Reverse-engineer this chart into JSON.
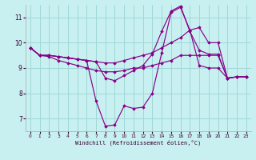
{
  "xlabel": "Windchill (Refroidissement éolien,°C)",
  "background_color": "#c8f0f0",
  "grid_color": "#a0d8d8",
  "line_color": "#880088",
  "xlim": [
    -0.5,
    23.5
  ],
  "ylim": [
    6.5,
    11.5
  ],
  "xticks": [
    0,
    1,
    2,
    3,
    4,
    5,
    6,
    7,
    8,
    9,
    10,
    11,
    12,
    13,
    14,
    15,
    16,
    17,
    18,
    19,
    20,
    21,
    22,
    23
  ],
  "yticks": [
    7,
    8,
    9,
    10,
    11
  ],
  "curves": [
    {
      "x": [
        0,
        1,
        2,
        3,
        4,
        5,
        6,
        7,
        8,
        9,
        10,
        11,
        12,
        13,
        14,
        15,
        16,
        17,
        18,
        19,
        20,
        21,
        22,
        23
      ],
      "y": [
        9.8,
        9.5,
        9.5,
        9.45,
        9.4,
        9.35,
        9.3,
        9.25,
        9.2,
        9.2,
        9.3,
        9.4,
        9.5,
        9.6,
        9.8,
        10.0,
        10.2,
        10.5,
        10.6,
        10.0,
        10.0,
        8.6,
        8.65,
        8.65
      ]
    },
    {
      "x": [
        0,
        1,
        2,
        3,
        4,
        5,
        6,
        7,
        8,
        9,
        10,
        11,
        12,
        13,
        14,
        15,
        16,
        17,
        18,
        19,
        20,
        21,
        22,
        23
      ],
      "y": [
        9.8,
        9.5,
        9.45,
        9.3,
        9.2,
        9.1,
        9.0,
        8.9,
        8.85,
        8.85,
        8.9,
        9.0,
        9.0,
        9.1,
        9.2,
        9.3,
        9.5,
        9.5,
        9.5,
        9.5,
        9.5,
        8.6,
        8.65,
        8.65
      ]
    },
    {
      "x": [
        0,
        1,
        2,
        3,
        4,
        5,
        6,
        7,
        8,
        9,
        10,
        11,
        12,
        13,
        14,
        15,
        16,
        17,
        18,
        19,
        20,
        21,
        22,
        23
      ],
      "y": [
        9.8,
        9.5,
        9.5,
        9.45,
        9.4,
        9.35,
        9.3,
        9.25,
        8.6,
        8.5,
        8.7,
        8.9,
        9.1,
        9.55,
        10.45,
        11.25,
        11.45,
        10.45,
        9.7,
        9.55,
        9.55,
        8.6,
        8.65,
        8.65
      ]
    },
    {
      "x": [
        0,
        1,
        2,
        3,
        4,
        5,
        6,
        7,
        8,
        9,
        10,
        11,
        12,
        13,
        14,
        15,
        16,
        17,
        18,
        19,
        20,
        21,
        22,
        23
      ],
      "y": [
        9.8,
        9.5,
        9.5,
        9.45,
        9.4,
        9.35,
        9.3,
        7.7,
        6.7,
        6.75,
        7.5,
        7.4,
        7.45,
        8.0,
        9.6,
        11.2,
        11.4,
        10.5,
        9.1,
        9.0,
        9.0,
        8.6,
        8.65,
        8.65
      ]
    }
  ]
}
